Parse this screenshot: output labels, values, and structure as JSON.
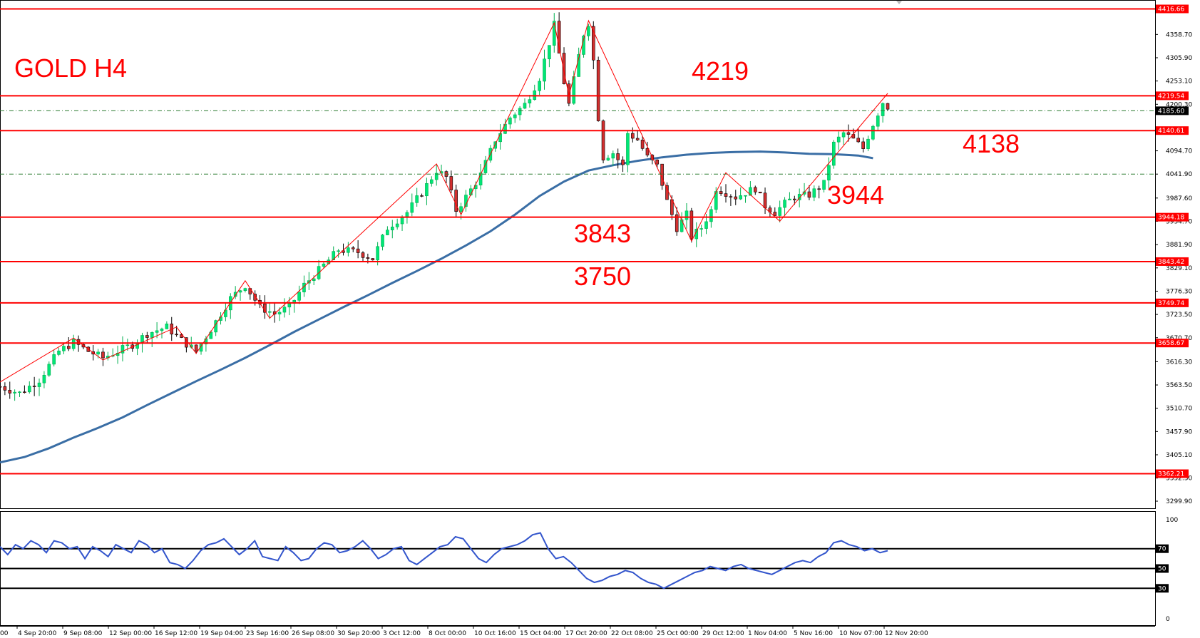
{
  "chart_data": [
    {
      "type": "candlestick",
      "title": "GOLD H4",
      "symbol": "GOLD",
      "timeframe": "H4",
      "ylim": [
        3299.9,
        4440
      ],
      "y_ticks": [
        "4358.70",
        "4305.90",
        "4253.10",
        "4200.30",
        "4094.70",
        "4041.90",
        "3987.60",
        "3934.70",
        "3881.90",
        "3829.10",
        "3776.30",
        "3723.50",
        "3670.70",
        "3616.30",
        "3563.50",
        "3510.70",
        "3457.90",
        "3405.10",
        "3352.30",
        "3299.90"
      ],
      "x_ticks": [
        "4 Sep 20:00",
        "9 Sep 08:00",
        "12 Sep 00:00",
        "16 Sep 12:00",
        "19 Sep 04:00",
        "23 Sep 16:00",
        "26 Sep 08:00",
        "30 Sep 20:00",
        "3 Oct 12:00",
        "8 Oct 00:00",
        "10 Oct 16:00",
        "15 Oct 04:00",
        "17 Oct 20:00",
        "22 Oct 08:00",
        "25 Oct 00:00",
        "29 Oct 12:00",
        "1 Nov 04:00",
        "5 Nov 16:00",
        "10 Nov 07:00",
        "12 Nov 20:00"
      ],
      "x_edge_label": "00",
      "levels": [
        {
          "value": 4416.66,
          "tag": "4416.66"
        },
        {
          "value": 4219.54,
          "tag": "4219.54",
          "label": "4219"
        },
        {
          "value": 4140.61,
          "tag": "4140.61",
          "label": "4138"
        },
        {
          "value": 3944.18,
          "tag": "3944.18",
          "label": "3944"
        },
        {
          "value": 3843.42,
          "tag": "3843.42",
          "label": "3843"
        },
        {
          "value": 3749.74,
          "tag": "3749.74",
          "label": "3750"
        },
        {
          "value": 3658.67,
          "tag": "3658.67"
        },
        {
          "value": 3362.21,
          "tag": "3362.21"
        }
      ],
      "dashed_levels": [
        4185.6,
        4041.9
      ],
      "current_price": "4185.60",
      "moving_average": {
        "color": "#3a6ea5",
        "points": [
          [
            0,
            3388
          ],
          [
            5,
            3400
          ],
          [
            10,
            3420
          ],
          [
            15,
            3444
          ],
          [
            20,
            3466
          ],
          [
            25,
            3490
          ],
          [
            30,
            3518
          ],
          [
            35,
            3545
          ],
          [
            40,
            3572
          ],
          [
            45,
            3598
          ],
          [
            50,
            3625
          ],
          [
            55,
            3654
          ],
          [
            60,
            3684
          ],
          [
            65,
            3712
          ],
          [
            70,
            3740
          ],
          [
            75,
            3767
          ],
          [
            80,
            3795
          ],
          [
            85,
            3822
          ],
          [
            90,
            3850
          ],
          [
            95,
            3880
          ],
          [
            100,
            3912
          ],
          [
            105,
            3950
          ],
          [
            110,
            3992
          ],
          [
            115,
            4025
          ],
          [
            120,
            4050
          ],
          [
            125,
            4062
          ],
          [
            130,
            4072
          ],
          [
            135,
            4080
          ],
          [
            140,
            4086
          ],
          [
            145,
            4090
          ],
          [
            150,
            4092
          ],
          [
            155,
            4093
          ],
          [
            160,
            4091
          ],
          [
            165,
            4088
          ],
          [
            170,
            4087
          ],
          [
            175,
            4084
          ],
          [
            178,
            4078
          ]
        ]
      },
      "close_path": [
        [
          0,
          3560
        ],
        [
          4,
          3545
        ],
        [
          8,
          3575
        ],
        [
          12,
          3640
        ],
        [
          15,
          3660
        ],
        [
          18,
          3640
        ],
        [
          21,
          3625
        ],
        [
          24,
          3640
        ],
        [
          27,
          3655
        ],
        [
          30,
          3680
        ],
        [
          34,
          3695
        ],
        [
          37,
          3665
        ],
        [
          40,
          3640
        ],
        [
          43,
          3690
        ],
        [
          47,
          3760
        ],
        [
          50,
          3790
        ],
        [
          53,
          3740
        ],
        [
          56,
          3725
        ],
        [
          59,
          3740
        ],
        [
          62,
          3790
        ],
        [
          66,
          3835
        ],
        [
          69,
          3870
        ],
        [
          73,
          3865
        ],
        [
          76,
          3850
        ],
        [
          79,
          3920
        ],
        [
          83,
          3955
        ],
        [
          86,
          4000
        ],
        [
          89,
          4050
        ],
        [
          91,
          4035
        ],
        [
          93,
          3960
        ],
        [
          95,
          3990
        ],
        [
          98,
          4040
        ],
        [
          101,
          4120
        ],
        [
          104,
          4170
        ],
        [
          107,
          4200
        ],
        [
          110,
          4260
        ],
        [
          112,
          4340
        ],
        [
          113,
          4380
        ],
        [
          115,
          4250
        ],
        [
          116,
          4200
        ],
        [
          118,
          4310
        ],
        [
          119,
          4360
        ],
        [
          120,
          4385
        ],
        [
          121,
          4300
        ],
        [
          122,
          4170
        ],
        [
          123,
          4080
        ],
        [
          125,
          4090
        ],
        [
          127,
          4060
        ],
        [
          128,
          4135
        ],
        [
          130,
          4120
        ],
        [
          132,
          4080
        ],
        [
          134,
          4060
        ],
        [
          136,
          3980
        ],
        [
          138,
          3920
        ],
        [
          140,
          3950
        ],
        [
          141,
          3900
        ],
        [
          143,
          3920
        ],
        [
          145,
          3960
        ],
        [
          146,
          4010
        ],
        [
          148,
          4000
        ],
        [
          150,
          3990
        ],
        [
          152,
          4000
        ],
        [
          154,
          4010
        ],
        [
          156,
          3970
        ],
        [
          158,
          3955
        ],
        [
          160,
          3975
        ],
        [
          162,
          3990
        ],
        [
          165,
          3995
        ],
        [
          168,
          4020
        ],
        [
          170,
          4110
        ],
        [
          172,
          4135
        ],
        [
          174,
          4120
        ],
        [
          176,
          4100
        ],
        [
          178,
          4155
        ],
        [
          180,
          4205
        ],
        [
          181,
          4195
        ]
      ],
      "zigzag": [
        [
          0,
          3570
        ],
        [
          15,
          3670
        ],
        [
          21,
          3620
        ],
        [
          36,
          3695
        ],
        [
          40,
          3635
        ],
        [
          50,
          3800
        ],
        [
          55,
          3715
        ],
        [
          89,
          4065
        ],
        [
          94,
          3950
        ],
        [
          113,
          4385
        ],
        [
          116,
          4220
        ],
        [
          120,
          4390
        ],
        [
          141,
          3890
        ],
        [
          148,
          4045
        ],
        [
          159,
          3935
        ],
        [
          181,
          4225
        ]
      ],
      "rsi": {
        "levels": [
          70,
          50,
          30
        ],
        "axis_labels": [
          "100",
          "70",
          "50",
          "30",
          "0"
        ],
        "values": [
          72,
          64,
          74,
          70,
          78,
          74,
          66,
          78,
          76,
          70,
          72,
          60,
          72,
          68,
          62,
          74,
          70,
          66,
          78,
          74,
          66,
          70,
          56,
          54,
          50,
          58,
          68,
          74,
          76,
          80,
          72,
          64,
          70,
          78,
          62,
          60,
          58,
          72,
          66,
          58,
          60,
          70,
          76,
          74,
          66,
          68,
          72,
          78,
          70,
          60,
          64,
          70,
          72,
          58,
          54,
          60,
          66,
          72,
          74,
          82,
          80,
          70,
          60,
          56,
          64,
          70,
          72,
          74,
          78,
          84,
          86,
          70,
          60,
          62,
          56,
          48,
          40,
          36,
          38,
          42,
          44,
          48,
          46,
          40,
          36,
          34,
          30,
          34,
          38,
          42,
          46,
          48,
          52,
          50,
          48,
          52,
          54,
          50,
          48,
          46,
          44,
          48,
          52,
          56,
          58,
          56,
          62,
          66,
          76,
          78,
          74,
          72,
          68,
          70,
          66,
          68
        ]
      }
    }
  ]
}
